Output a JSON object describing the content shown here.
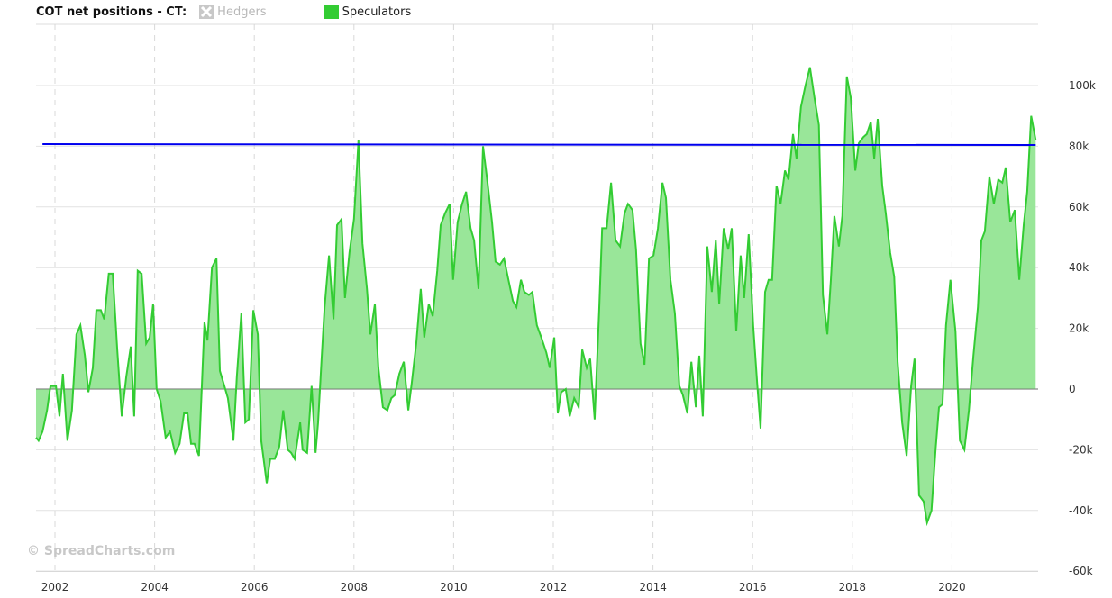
{
  "chart_data": {
    "type": "area",
    "title": "COT net positions - CT:",
    "legend": [
      {
        "name": "Hedgers",
        "color": "#b8b8b8",
        "hidden": true
      },
      {
        "name": "Speculators",
        "color": "#33cc33",
        "hidden": false
      }
    ],
    "legend_placement": "top-left",
    "x_ticks": [
      "2002",
      "2004",
      "2006",
      "2008",
      "2010",
      "2012",
      "2014",
      "2016",
      "2018",
      "2020"
    ],
    "y_ticks": [
      "100k",
      "80k",
      "60k",
      "40k",
      "20k",
      "0",
      "-20k",
      "-40k",
      "-60k"
    ],
    "y_tick_values": [
      100,
      80,
      60,
      40,
      20,
      0,
      -20,
      -40,
      -60
    ],
    "xlim": [
      2001.62,
      2021.7
    ],
    "ylim": [
      -60,
      110
    ],
    "y_unit": "thousands of contracts",
    "grid": true,
    "series": [
      {
        "name": "Speculators",
        "color": "#33cc33",
        "fill": "#99e699",
        "x": [
          2001.62,
          2001.67,
          2001.75,
          2001.84,
          2001.91,
          2002.02,
          2002.09,
          2002.16,
          2002.25,
          2002.34,
          2002.43,
          2002.51,
          2002.6,
          2002.67,
          2002.76,
          2002.83,
          2002.92,
          2002.99,
          2003.08,
          2003.16,
          2003.25,
          2003.34,
          2003.43,
          2003.52,
          2003.59,
          2003.66,
          2003.74,
          2003.83,
          2003.9,
          2003.97,
          2004.04,
          2004.12,
          2004.22,
          2004.31,
          2004.41,
          2004.5,
          2004.59,
          2004.66,
          2004.73,
          2004.8,
          2004.89,
          2005.0,
          2005.06,
          2005.15,
          2005.24,
          2005.31,
          2005.4,
          2005.47,
          2005.58,
          2005.65,
          2005.74,
          2005.82,
          2005.89,
          2005.98,
          2006.07,
          2006.14,
          2006.25,
          2006.32,
          2006.41,
          2006.5,
          2006.58,
          2006.67,
          2006.74,
          2006.81,
          2006.92,
          2006.97,
          2007.06,
          2007.15,
          2007.23,
          2007.28,
          2007.35,
          2007.41,
          2007.5,
          2007.59,
          2007.66,
          2007.75,
          2007.82,
          2007.91,
          2008.0,
          2008.09,
          2008.17,
          2008.26,
          2008.33,
          2008.42,
          2008.49,
          2008.58,
          2008.67,
          2008.75,
          2008.82,
          2008.91,
          2009.0,
          2009.09,
          2009.16,
          2009.25,
          2009.34,
          2009.41,
          2009.5,
          2009.58,
          2009.67,
          2009.74,
          2009.83,
          2009.92,
          2009.99,
          2010.08,
          2010.17,
          2010.25,
          2010.34,
          2010.41,
          2010.5,
          2010.59,
          2010.68,
          2010.77,
          2010.84,
          2010.93,
          2011.01,
          2011.1,
          2011.19,
          2011.26,
          2011.35,
          2011.42,
          2011.51,
          2011.58,
          2011.67,
          2011.76,
          2011.86,
          2011.93,
          2012.02,
          2012.09,
          2012.16,
          2012.25,
          2012.33,
          2012.42,
          2012.51,
          2012.58,
          2012.67,
          2012.74,
          2012.83,
          2012.92,
          2012.98,
          2013.07,
          2013.16,
          2013.25,
          2013.34,
          2013.43,
          2013.5,
          2013.59,
          2013.66,
          2013.75,
          2013.83,
          2013.92,
          2014.01,
          2014.1,
          2014.19,
          2014.26,
          2014.35,
          2014.44,
          2014.53,
          2014.6,
          2014.69,
          2014.77,
          2014.86,
          2014.93,
          2015.0,
          2015.09,
          2015.18,
          2015.26,
          2015.33,
          2015.42,
          2015.51,
          2015.58,
          2015.67,
          2015.76,
          2015.83,
          2015.92,
          2016.01,
          2016.09,
          2016.16,
          2016.25,
          2016.32,
          2016.39,
          2016.48,
          2016.56,
          2016.65,
          2016.72,
          2016.81,
          2016.88,
          2016.97,
          2017.06,
          2017.15,
          2017.24,
          2017.33,
          2017.41,
          2017.5,
          2017.57,
          2017.64,
          2017.73,
          2017.8,
          2017.89,
          2017.97,
          2018.06,
          2018.13,
          2018.22,
          2018.29,
          2018.37,
          2018.44,
          2018.51,
          2018.6,
          2018.67,
          2018.76,
          2018.84,
          2018.91,
          2019.0,
          2019.09,
          2019.18,
          2019.25,
          2019.34,
          2019.43,
          2019.5,
          2019.59,
          2019.67,
          2019.74,
          2019.81,
          2019.88,
          2019.97,
          2020.07,
          2020.16,
          2020.25,
          2020.34,
          2020.43,
          2020.52,
          2020.59,
          2020.66,
          2020.75,
          2020.84,
          2020.93,
          2021.01,
          2021.08,
          2021.17,
          2021.26,
          2021.35,
          2021.44,
          2021.51,
          2021.59,
          2021.68
        ],
        "values": [
          -16,
          -17,
          -14,
          -7,
          1,
          1,
          -9,
          5,
          -17,
          -7,
          18,
          21,
          11,
          -1,
          7,
          26,
          26,
          23,
          38,
          38,
          13,
          -9,
          4,
          14,
          -9,
          39,
          38,
          15,
          17,
          28,
          0,
          -4,
          -16,
          -14,
          -21,
          -18,
          -8,
          -8,
          -18,
          -18,
          -22,
          22,
          16,
          40,
          43,
          6,
          1,
          -3,
          -17,
          4,
          25,
          -11,
          -10,
          26,
          18,
          -17,
          -31,
          -23,
          -23,
          -19,
          -7,
          -20,
          -21,
          -23,
          -11,
          -20,
          -21,
          1,
          -21,
          -11,
          10,
          27,
          44,
          23,
          54,
          56,
          30,
          45,
          56,
          82,
          48,
          33,
          18,
          28,
          7,
          -6,
          -7,
          -3,
          -2,
          5,
          9,
          -7,
          2,
          15,
          33,
          17,
          28,
          24,
          39,
          54,
          58,
          61,
          36,
          55,
          61,
          65,
          53,
          49,
          33,
          80,
          68,
          55,
          42,
          41,
          43,
          36,
          29,
          27,
          36,
          32,
          31,
          32,
          21,
          17,
          12,
          7,
          17,
          -8,
          -1,
          0,
          -9,
          -3,
          -6,
          13,
          7,
          10,
          -10,
          26,
          53,
          53,
          68,
          49,
          47,
          58,
          61,
          59,
          46,
          15,
          8,
          43,
          44,
          53,
          68,
          63,
          36,
          25,
          1,
          -2,
          -8,
          9,
          -6,
          11,
          -9,
          47,
          32,
          49,
          28,
          53,
          46,
          53,
          19,
          44,
          30,
          51,
          21,
          2,
          -13,
          32,
          36,
          36,
          67,
          61,
          72,
          69,
          84,
          76,
          93,
          100,
          106,
          96,
          87,
          31,
          18,
          36,
          57,
          47,
          57,
          103,
          96,
          72,
          81,
          83,
          84,
          88,
          76,
          89,
          67,
          58,
          45,
          37,
          9,
          -11,
          -22,
          1,
          10,
          -35,
          -37,
          -44,
          -40,
          -20,
          -6,
          -5,
          21,
          36,
          19,
          -17,
          -20,
          -7,
          11,
          27,
          49,
          52,
          70,
          61,
          69,
          68,
          73,
          55,
          59,
          36,
          54,
          65,
          90,
          82
        ]
      },
      {
        "name": "Reference line",
        "color": "#0000ee",
        "x": [
          2001.75,
          2021.68
        ],
        "values": [
          80.7,
          80.4
        ]
      }
    ]
  },
  "watermark": "© SpreadCharts.com"
}
